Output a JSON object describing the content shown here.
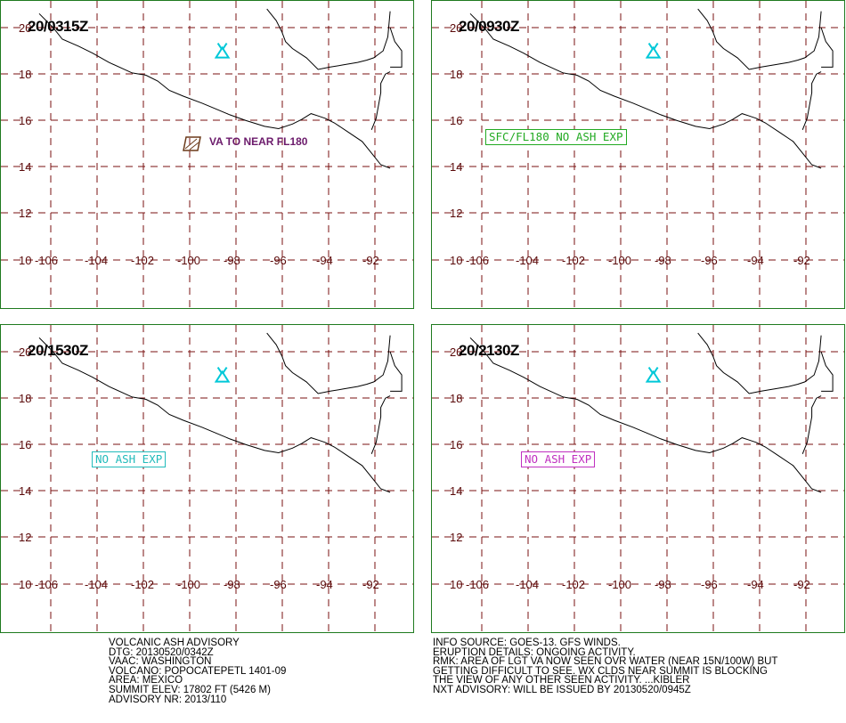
{
  "panels": [
    {
      "time": "20/0315Z",
      "label": "VA TO NEAR FL180",
      "label_type": "va",
      "color": "#6b1a6b"
    },
    {
      "time": "20/0930Z",
      "label": "SFC/FL180 NO ASH EXP",
      "label_type": "box",
      "color": "#22aa22"
    },
    {
      "time": "20/1530Z",
      "label": "NO ASH EXP",
      "label_type": "box",
      "color": "#22bbbb"
    },
    {
      "time": "20/2130Z",
      "label": "NO ASH EXP",
      "label_type": "box",
      "color": "#c030c0"
    }
  ],
  "axes": {
    "lat_labels": [
      "20",
      "18",
      "16",
      "14",
      "12",
      "10"
    ],
    "lon_labels": [
      "-106",
      "-104",
      "-102",
      "-100",
      "-98",
      "-96",
      "-94",
      "-92"
    ]
  },
  "colors": {
    "grid": "#7a1010",
    "coast": "#000000",
    "volcano": "#00c8d8",
    "ash_polygon": "#6b3a1a",
    "panel_border": "#1f7a1f"
  },
  "icons": {
    "volcano": "volcano-icon"
  },
  "advisory_left": [
    "VOLCANIC ASH ADVISORY",
    "DTG: 20130520/0342Z",
    "VAAC: WASHINGTON",
    "VOLCANO: POPOCATEPETL 1401-09",
    "AREA: MEXICO",
    "SUMMIT ELEV: 17802 FT (5426 M)",
    "ADVISORY NR: 2013/110"
  ],
  "advisory_right": [
    "INFO SOURCE: GOES-13. GFS WINDS.",
    "ERUPTION DETAILS: ONGOING ACTIVITY.",
    "RMK: AREA OF LGT VA NOW SEEN OVR WATER (NEAR 15N/100W) BUT",
    "GETTING DIFFICULT TO SEE. WX CLDS NEAR SUMMIT IS BLOCKING",
    "THE VIEW OF ANY OTHER SEEN ACTIVITY. ...KIBLER",
    "NXT ADVISORY: WILL BE ISSUED BY 20130520/0945Z"
  ]
}
